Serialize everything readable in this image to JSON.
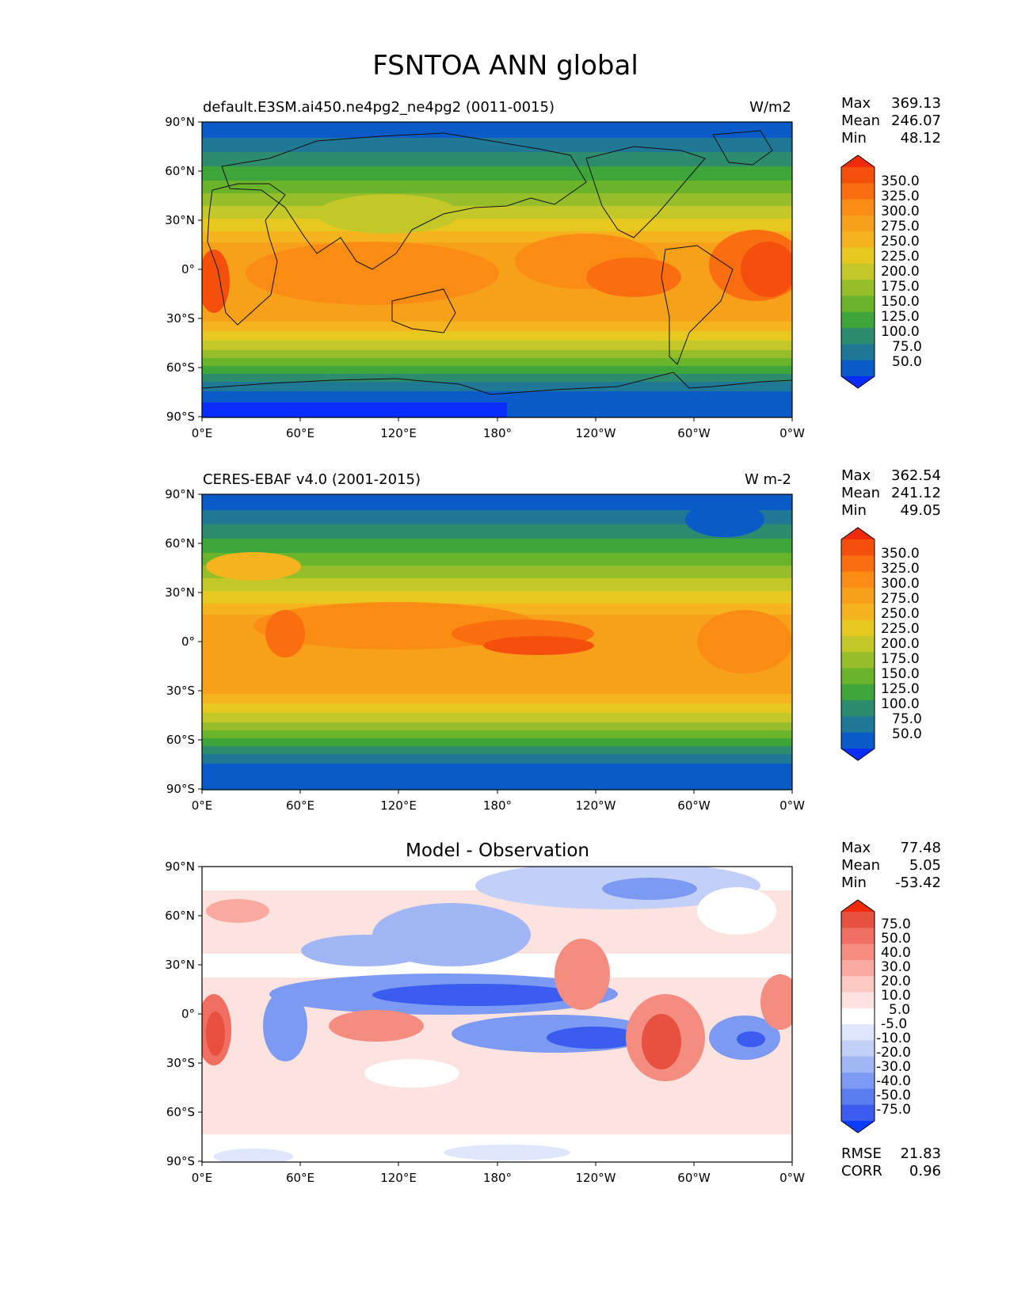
{
  "figure": {
    "title": "FSNTOA ANN global"
  },
  "axes": {
    "lat_ticks": [
      "90°N",
      "60°N",
      "30°N",
      "0°",
      "30°S",
      "60°S",
      "90°S"
    ],
    "lon_ticks": [
      "0°E",
      "60°E",
      "120°E",
      "180°",
      "120°W",
      "60°W",
      "0°W"
    ]
  },
  "colors": {
    "scale": [
      "#0a2dff",
      "#0a5ac8",
      "#1e7896",
      "#2e8c6e",
      "#3ea53a",
      "#6ab42c",
      "#96be2a",
      "#c3c828",
      "#e6c81e",
      "#f5b41e",
      "#f7a01a",
      "#fa8c14",
      "#fa6e10",
      "#f4500c",
      "#f02a0a"
    ],
    "diff": [
      "#0a3cff",
      "#3a5df0",
      "#5a7ef0",
      "#7d9af2",
      "#a0b6f5",
      "#c2d0f8",
      "#dde6fb",
      "#ffffff",
      "#fde3e0",
      "#fcc8c2",
      "#f9aaa0",
      "#f58c80",
      "#f06e62",
      "#e8503f",
      "#f02a0a"
    ]
  },
  "chart_data": [
    {
      "type": "heatmap",
      "title_left": "default.E3SM.ai450.ne4pg2_ne4pg2 (0011-0015)",
      "title_right": "W/m2",
      "stats": [
        {
          "label": "Max",
          "value": "369.13"
        },
        {
          "label": "Mean",
          "value": "246.07"
        },
        {
          "label": "Min",
          "value": "48.12"
        }
      ],
      "colorbar_levels": [
        "350.0",
        "325.0",
        "300.0",
        "275.0",
        "250.0",
        "225.0",
        "200.0",
        "175.0",
        "150.0",
        "125.0",
        "100.0",
        "75.0",
        "50.0"
      ],
      "xlim": [
        0,
        360
      ],
      "ylim": [
        -90,
        90
      ]
    },
    {
      "type": "heatmap",
      "title_left": "CERES-EBAF v4.0 (2001-2015)",
      "title_right": "W m-2",
      "stats": [
        {
          "label": "Max",
          "value": "362.54"
        },
        {
          "label": "Mean",
          "value": "241.12"
        },
        {
          "label": "Min",
          "value": "49.05"
        }
      ],
      "colorbar_levels": [
        "350.0",
        "325.0",
        "300.0",
        "275.0",
        "250.0",
        "225.0",
        "200.0",
        "175.0",
        "150.0",
        "125.0",
        "100.0",
        "75.0",
        "50.0"
      ],
      "xlim": [
        0,
        360
      ],
      "ylim": [
        -90,
        90
      ]
    },
    {
      "type": "heatmap",
      "title": "Model - Observation",
      "stats": [
        {
          "label": "Max",
          "value": "77.48"
        },
        {
          "label": "Mean",
          "value": "5.05"
        },
        {
          "label": "Min",
          "value": "-53.42"
        }
      ],
      "colorbar_levels": [
        "75.0",
        "50.0",
        "40.0",
        "30.0",
        "20.0",
        "10.0",
        "5.0",
        "-5.0",
        "-10.0",
        "-20.0",
        "-30.0",
        "-40.0",
        "-50.0",
        "-75.0"
      ],
      "extra_stats": [
        {
          "label": "RMSE",
          "value": "21.83"
        },
        {
          "label": "CORR",
          "value": "0.96"
        }
      ],
      "xlim": [
        0,
        360
      ],
      "ylim": [
        -90,
        90
      ]
    }
  ]
}
